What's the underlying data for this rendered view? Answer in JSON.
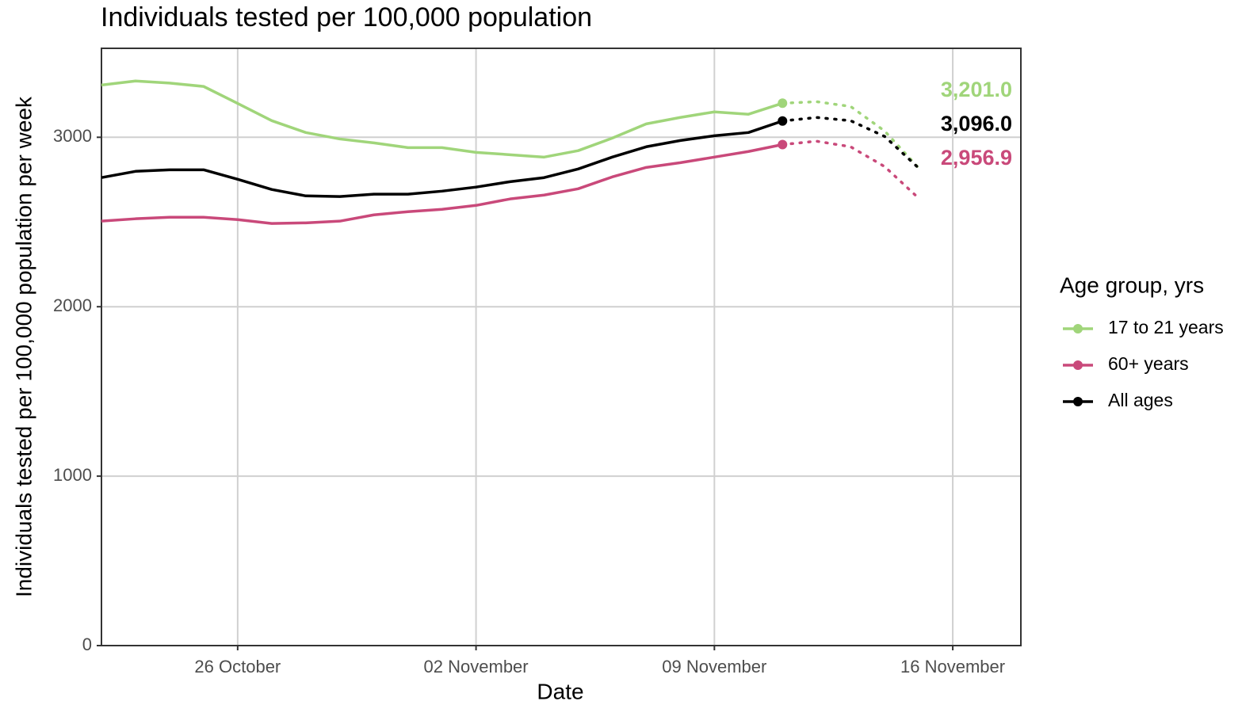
{
  "chart_data": {
    "type": "line",
    "title": "Individuals tested per 100,000 population",
    "x_label": "Date",
    "y_label": "Individuals tested per 100,000 population per week",
    "legend_title": "Age group, yrs",
    "legend": "right",
    "grid": true,
    "categories": [
      "22 October",
      "23 October",
      "24 October",
      "25 October",
      "26 October",
      "27 October",
      "28 October",
      "29 October",
      "30 October",
      "31 October",
      "01 November",
      "02 November",
      "03 November",
      "04 November",
      "05 November",
      "06 November",
      "07 November",
      "08 November",
      "09 November",
      "10 November",
      "11 November",
      "12 November",
      "13 November",
      "14 November",
      "15 November",
      "16 November",
      "17 November",
      "18 November"
    ],
    "xlim": [
      "22 October",
      "18 November"
    ],
    "xticks": [
      "26 October",
      "02 November",
      "09 November",
      "16 November"
    ],
    "ylim": [
      0,
      3525
    ],
    "yticks": [
      0,
      1000,
      2000,
      3000
    ],
    "series": [
      {
        "name": "17 to 21 years",
        "color": "#a0d57a",
        "values": [
          3308,
          3332,
          3320,
          3300,
          3200,
          3098,
          3028,
          2990,
          2967,
          2939,
          2939,
          2911,
          2897,
          2883,
          2921,
          2995,
          3079,
          3117,
          3150,
          3136,
          3201.0,
          null,
          null,
          null,
          null,
          null,
          null,
          null
        ],
        "projected_values": [
          null,
          null,
          null,
          null,
          null,
          null,
          null,
          null,
          null,
          null,
          null,
          null,
          null,
          null,
          null,
          null,
          null,
          null,
          null,
          null,
          3201.0,
          3210,
          3182,
          3037,
          2818,
          null,
          null,
          null
        ],
        "value_labels": [
          null,
          null,
          null,
          null,
          null,
          null,
          null,
          null,
          null,
          null,
          null,
          null,
          null,
          null,
          null,
          null,
          null,
          null,
          null,
          null,
          "3,201.0",
          null,
          null,
          null,
          null,
          null,
          null,
          null
        ]
      },
      {
        "name": "60+ years",
        "color": "#c9497a",
        "values": [
          2505,
          2519,
          2528,
          2528,
          2514,
          2491,
          2495,
          2505,
          2542,
          2561,
          2575,
          2598,
          2636,
          2659,
          2696,
          2766,
          2822,
          2850,
          2883,
          2916,
          2956.9,
          null,
          null,
          null,
          null,
          null,
          null,
          null
        ],
        "projected_values": [
          null,
          null,
          null,
          null,
          null,
          null,
          null,
          null,
          null,
          null,
          null,
          null,
          null,
          null,
          null,
          null,
          null,
          null,
          null,
          null,
          2956.9,
          2977,
          2944,
          2827,
          2640,
          null,
          null,
          null
        ],
        "value_labels": [
          null,
          null,
          null,
          null,
          null,
          null,
          null,
          null,
          null,
          null,
          null,
          null,
          null,
          null,
          null,
          null,
          null,
          null,
          null,
          null,
          "2,956.9",
          null,
          null,
          null,
          null,
          null,
          null,
          null
        ]
      },
      {
        "name": "All ages",
        "color": "#000000",
        "values": [
          2762,
          2799,
          2808,
          2808,
          2752,
          2692,
          2654,
          2650,
          2664,
          2664,
          2682,
          2706,
          2738,
          2762,
          2813,
          2883,
          2944,
          2981,
          3009,
          3028,
          3096.0,
          null,
          null,
          null,
          null,
          null,
          null,
          null
        ],
        "projected_values": [
          null,
          null,
          null,
          null,
          null,
          null,
          null,
          null,
          null,
          null,
          null,
          null,
          null,
          null,
          null,
          null,
          null,
          null,
          null,
          null,
          3096.0,
          3117,
          3098,
          3005,
          2818,
          null,
          null,
          null
        ],
        "value_labels": [
          null,
          null,
          null,
          null,
          null,
          null,
          null,
          null,
          null,
          null,
          null,
          null,
          null,
          null,
          null,
          null,
          null,
          null,
          null,
          null,
          "3,096.0",
          null,
          null,
          null,
          null,
          null,
          null,
          null
        ]
      }
    ]
  }
}
